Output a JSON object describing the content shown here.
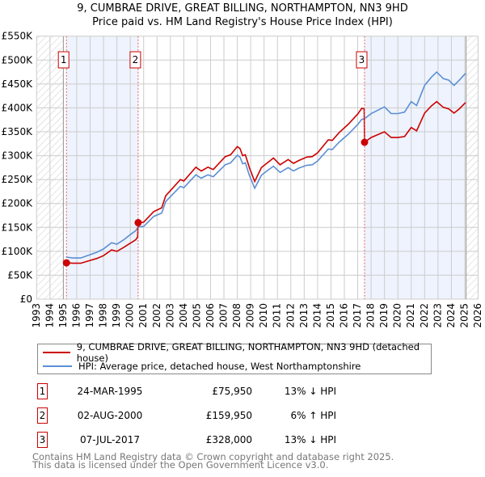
{
  "header": {
    "title_line1": "9, CUMBRAE DRIVE, GREAT BILLING, NORTHAMPTON, NN3 9HD",
    "title_line2": "Price paid vs. HM Land Registry's House Price Index (HPI)"
  },
  "colors": {
    "price": "#cc0000",
    "hpi": "#5b8fd4",
    "shade": "#eef3fd",
    "grid": "#cccccc"
  },
  "chart_data": {
    "type": "line",
    "title": "9, CUMBRAE DRIVE, GREAT BILLING, NORTHAMPTON, NN3 9HD - Price paid vs. HM Land Registry's House Price Index (HPI)",
    "xlim": [
      1993,
      2026
    ],
    "ylim": [
      0,
      550000
    ],
    "grid": true,
    "legend_placement": "below",
    "x_ticks": [
      "1993",
      "1994",
      "1995",
      "1996",
      "1997",
      "1998",
      "1999",
      "2000",
      "2001",
      "2002",
      "2003",
      "2004",
      "2005",
      "2006",
      "2007",
      "2008",
      "2009",
      "2010",
      "2011",
      "2012",
      "2013",
      "2014",
      "2015",
      "2016",
      "2017",
      "2018",
      "2019",
      "2020",
      "2021",
      "2022",
      "2023",
      "2024",
      "2025",
      "2026"
    ],
    "y_ticks": [
      {
        "v": 0,
        "label": "£0"
      },
      {
        "v": 50000,
        "label": "£50K"
      },
      {
        "v": 100000,
        "label": "£100K"
      },
      {
        "v": 150000,
        "label": "£150K"
      },
      {
        "v": 200000,
        "label": "£200K"
      },
      {
        "v": 250000,
        "label": "£250K"
      },
      {
        "v": 300000,
        "label": "£300K"
      },
      {
        "v": 350000,
        "label": "£350K"
      },
      {
        "v": 400000,
        "label": "£400K"
      },
      {
        "v": 450000,
        "label": "£450K"
      },
      {
        "v": 500000,
        "label": "£500K"
      },
      {
        "v": 550000,
        "label": "£550K"
      }
    ],
    "data_start": 1995.0,
    "data_end": 2025.1,
    "series": [
      {
        "name": "9, CUMBRAE DRIVE, GREAT BILLING, NORTHAMPTON, NN3 9HD (detached house)",
        "color": "#cc0000",
        "x": [
          1995.23,
          1995.7,
          1996.3,
          1997,
          1997.5,
          1998,
          1998.6,
          1999,
          1999.5,
          2000,
          2000.4,
          2000.55,
          2000.59,
          2001,
          2001.75,
          2002.35,
          2002.65,
          2003.75,
          2004,
          2004.9,
          2005.3,
          2005.8,
          2006.2,
          2007.1,
          2007.5,
          2008,
          2008.2,
          2008.4,
          2008.6,
          2008.9,
          2009.3,
          2009.8,
          2010.2,
          2010.7,
          2011.2,
          2011.8,
          2012.2,
          2012.6,
          2013.2,
          2013.6,
          2014,
          2014.8,
          2015.1,
          2015.6,
          2016.3,
          2017,
          2017.3,
          2017.48,
          2017.51,
          2018,
          2019,
          2019.5,
          2020,
          2020.5,
          2021,
          2021.4,
          2022,
          2022.5,
          2022.9,
          2023.4,
          2023.8,
          2024.2,
          2024.6,
          2025.05
        ],
        "y": [
          75950,
          75000,
          75000,
          81000,
          85000,
          91000,
          103000,
          100000,
          108000,
          117000,
          124000,
          130000,
          159950,
          161000,
          183000,
          191000,
          216000,
          250000,
          247000,
          276000,
          268000,
          276000,
          271000,
          298000,
          302000,
          319000,
          315000,
          300000,
          302000,
          275000,
          246000,
          275000,
          284000,
          295000,
          281000,
          292000,
          284000,
          290000,
          297000,
          298000,
          306000,
          333000,
          332000,
          348000,
          366000,
          387000,
          399000,
          398000,
          328000,
          338000,
          350000,
          338000,
          338000,
          340000,
          359000,
          352000,
          389000,
          404000,
          413000,
          401000,
          398000,
          389000,
          398000,
          411000
        ]
      },
      {
        "name": "HPI: Average price, detached house, West Northamptonshire",
        "color": "#5b8fd4",
        "x": [
          1995.2,
          1995.7,
          1996.3,
          1997,
          1997.5,
          1998,
          1998.6,
          1999,
          1999.5,
          2000,
          2000.4,
          2000.6,
          2001,
          2001.75,
          2002.35,
          2002.65,
          2003.75,
          2004,
          2004.9,
          2005.3,
          2005.8,
          2006.2,
          2007.1,
          2007.5,
          2008,
          2008.2,
          2008.4,
          2008.6,
          2008.9,
          2009.3,
          2009.8,
          2010.2,
          2010.7,
          2011.2,
          2011.8,
          2012.2,
          2012.6,
          2013.2,
          2013.6,
          2014,
          2014.8,
          2015.1,
          2015.6,
          2016.3,
          2017,
          2017.3,
          2017.5,
          2018,
          2019,
          2019.5,
          2020,
          2020.5,
          2021,
          2021.4,
          2022,
          2022.5,
          2022.9,
          2023.4,
          2023.8,
          2024.2,
          2024.6,
          2025.05
        ],
        "y": [
          88000,
          86000,
          86000,
          93000,
          98000,
          105000,
          118000,
          115000,
          124000,
          135000,
          143000,
          151000,
          152000,
          173000,
          180000,
          204000,
          236000,
          233000,
          260000,
          253000,
          260000,
          256000,
          281000,
          285000,
          301000,
          297000,
          283000,
          285000,
          259000,
          232000,
          259000,
          268000,
          278000,
          265000,
          275000,
          268000,
          274000,
          280000,
          281000,
          289000,
          314000,
          313000,
          328000,
          345000,
          365000,
          376000,
          377000,
          388000,
          402000,
          388000,
          388000,
          391000,
          413000,
          405000,
          447000,
          464000,
          475000,
          461000,
          458000,
          447000,
          458000,
          472000
        ]
      }
    ],
    "sales": [
      {
        "label": "1",
        "x": 2000.0,
        "date_x": 1995.23,
        "price": 75950
      },
      {
        "label": "2",
        "date_x": 2000.59,
        "price": 159950
      },
      {
        "label": "3",
        "date_x": 2017.51,
        "price": 328000
      }
    ]
  },
  "legend": {
    "price_label": "9, CUMBRAE DRIVE, GREAT BILLING, NORTHAMPTON, NN3 9HD (detached house)",
    "hpi_label": "HPI: Average price, detached house, West Northamptonshire"
  },
  "transactions": [
    {
      "num": "1",
      "date": "24-MAR-1995",
      "price": "£75,950",
      "delta": "13% ↓ HPI"
    },
    {
      "num": "2",
      "date": "02-AUG-2000",
      "price": "£159,950",
      "delta": "6% ↑ HPI"
    },
    {
      "num": "3",
      "date": "07-JUL-2017",
      "price": "£328,000",
      "delta": "13% ↓ HPI"
    }
  ],
  "footer": {
    "line1": "Contains HM Land Registry data © Crown copyright and database right 2025.",
    "line2": "This data is licensed under the Open Government Licence v3.0."
  }
}
